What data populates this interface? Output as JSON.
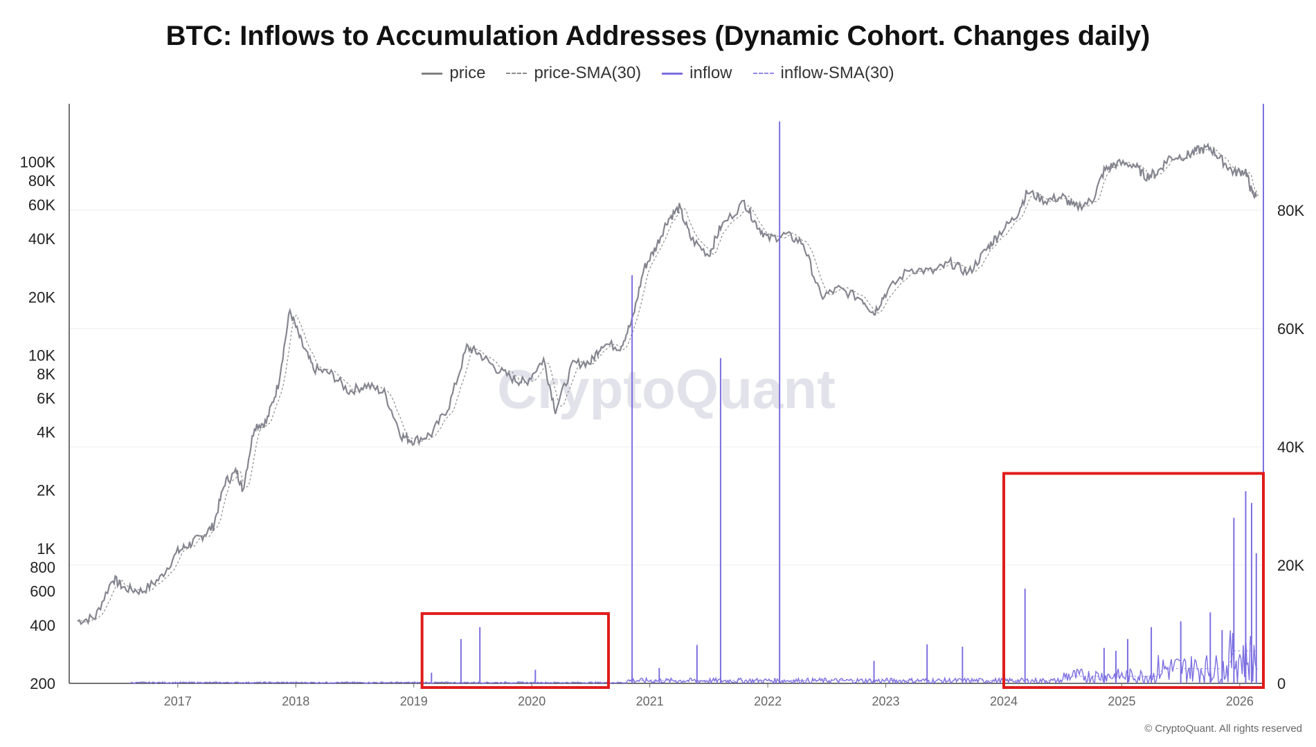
{
  "chart_data": {
    "type": "line",
    "title": "BTC: Inflows to Accumulation Addresses (Dynamic Cohort. Changes daily)",
    "legend": [
      {
        "name": "price",
        "style": "solid",
        "color": "#808080"
      },
      {
        "name": "price-SMA(30)",
        "style": "dashed",
        "color": "#8a8a8a"
      },
      {
        "name": "inflow",
        "style": "solid",
        "color": "#7b6fe0"
      },
      {
        "name": "inflow-SMA(30)",
        "style": "dashed",
        "color": "#8f86e6"
      }
    ],
    "legend_position": "top-center",
    "x_ticks": [
      "2017",
      "2018",
      "2019",
      "2020",
      "2021",
      "2022",
      "2023",
      "2024",
      "2025",
      "2026"
    ],
    "x_range": [
      2016.08,
      2026.2
    ],
    "left_axis": {
      "scale": "log",
      "range": [
        200,
        200000
      ],
      "ticks": [
        {
          "v": 200,
          "label": "200"
        },
        {
          "v": 400,
          "label": "400"
        },
        {
          "v": 600,
          "label": "600"
        },
        {
          "v": 800,
          "label": "800"
        },
        {
          "v": 1000,
          "label": "1K"
        },
        {
          "v": 2000,
          "label": "2K"
        },
        {
          "v": 4000,
          "label": "4K"
        },
        {
          "v": 6000,
          "label": "6K"
        },
        {
          "v": 8000,
          "label": "8K"
        },
        {
          "v": 10000,
          "label": "10K"
        },
        {
          "v": 20000,
          "label": "20K"
        },
        {
          "v": 40000,
          "label": "40K"
        },
        {
          "v": 60000,
          "label": "60K"
        },
        {
          "v": 80000,
          "label": "80K"
        },
        {
          "v": 100000,
          "label": "100K"
        }
      ]
    },
    "right_axis": {
      "scale": "linear",
      "range": [
        0,
        98000
      ],
      "ticks": [
        {
          "v": 0,
          "label": "0"
        },
        {
          "v": 20000,
          "label": "20K"
        },
        {
          "v": 40000,
          "label": "40K"
        },
        {
          "v": 60000,
          "label": "60K"
        },
        {
          "v": 80000,
          "label": "80K"
        }
      ]
    },
    "price_series": [
      [
        2016.15,
        420
      ],
      [
        2016.3,
        440
      ],
      [
        2016.45,
        700
      ],
      [
        2016.55,
        620
      ],
      [
        2016.7,
        600
      ],
      [
        2016.85,
        700
      ],
      [
        2017.0,
        960
      ],
      [
        2017.1,
        1050
      ],
      [
        2017.2,
        1150
      ],
      [
        2017.3,
        1300
      ],
      [
        2017.4,
        2200
      ],
      [
        2017.5,
        2500
      ],
      [
        2017.55,
        2000
      ],
      [
        2017.65,
        4300
      ],
      [
        2017.75,
        4500
      ],
      [
        2017.85,
        7000
      ],
      [
        2017.95,
        17000
      ],
      [
        2018.05,
        11500
      ],
      [
        2018.15,
        8500
      ],
      [
        2018.3,
        8000
      ],
      [
        2018.45,
        6500
      ],
      [
        2018.6,
        7000
      ],
      [
        2018.75,
        6400
      ],
      [
        2018.9,
        3800
      ],
      [
        2019.0,
        3600
      ],
      [
        2019.15,
        3900
      ],
      [
        2019.3,
        5500
      ],
      [
        2019.45,
        11000
      ],
      [
        2019.55,
        10200
      ],
      [
        2019.7,
        8500
      ],
      [
        2019.85,
        7500
      ],
      [
        2019.95,
        7200
      ],
      [
        2020.1,
        9500
      ],
      [
        2020.2,
        5200
      ],
      [
        2020.35,
        9000
      ],
      [
        2020.5,
        9200
      ],
      [
        2020.6,
        11500
      ],
      [
        2020.75,
        11000
      ],
      [
        2020.85,
        15000
      ],
      [
        2020.95,
        28000
      ],
      [
        2021.05,
        36000
      ],
      [
        2021.15,
        50000
      ],
      [
        2021.25,
        58000
      ],
      [
        2021.35,
        40000
      ],
      [
        2021.5,
        33000
      ],
      [
        2021.6,
        46000
      ],
      [
        2021.8,
        62000
      ],
      [
        2021.9,
        48000
      ],
      [
        2022.0,
        40000
      ],
      [
        2022.15,
        42000
      ],
      [
        2022.3,
        38000
      ],
      [
        2022.45,
        20000
      ],
      [
        2022.6,
        22000
      ],
      [
        2022.8,
        19500
      ],
      [
        2022.9,
        16500
      ],
      [
        2023.0,
        21000
      ],
      [
        2023.2,
        28000
      ],
      [
        2023.4,
        27000
      ],
      [
        2023.55,
        30000
      ],
      [
        2023.7,
        26500
      ],
      [
        2023.85,
        35000
      ],
      [
        2023.95,
        42000
      ],
      [
        2024.1,
        52000
      ],
      [
        2024.2,
        70000
      ],
      [
        2024.35,
        63000
      ],
      [
        2024.5,
        66000
      ],
      [
        2024.6,
        58000
      ],
      [
        2024.75,
        63000
      ],
      [
        2024.85,
        90000
      ],
      [
        2024.95,
        98000
      ],
      [
        2025.1,
        97000
      ],
      [
        2025.2,
        84000
      ],
      [
        2025.3,
        88000
      ],
      [
        2025.4,
        105000
      ],
      [
        2025.55,
        108000
      ],
      [
        2025.65,
        115000
      ],
      [
        2025.75,
        118000
      ],
      [
        2025.85,
        102000
      ],
      [
        2025.95,
        88000
      ],
      [
        2026.05,
        90000
      ],
      [
        2026.1,
        70000
      ],
      [
        2026.14,
        66000
      ]
    ],
    "inflow_spikes": [
      [
        2019.15,
        1800
      ],
      [
        2019.4,
        7500
      ],
      [
        2019.56,
        9500
      ],
      [
        2020.03,
        2300
      ],
      [
        2020.85,
        69000
      ],
      [
        2021.08,
        2600
      ],
      [
        2021.4,
        6500
      ],
      [
        2021.6,
        55000
      ],
      [
        2022.1,
        95000
      ],
      [
        2022.9,
        3800
      ],
      [
        2023.35,
        6600
      ],
      [
        2023.65,
        6200
      ],
      [
        2024.18,
        16000
      ],
      [
        2024.85,
        6000
      ],
      [
        2024.95,
        5500
      ],
      [
        2025.05,
        7500
      ],
      [
        2025.25,
        9500
      ],
      [
        2025.5,
        10500
      ],
      [
        2025.75,
        12000
      ],
      [
        2025.85,
        9000
      ],
      [
        2025.95,
        28000
      ],
      [
        2026.05,
        32500
      ],
      [
        2026.1,
        30500
      ],
      [
        2026.14,
        22000
      ]
    ],
    "annotations": [
      "highlight box 2019.1–2020.65 around inflow spikes",
      "highlight box 2024.0–2026.2 around rising inflows"
    ],
    "watermark": "CryptoQuant",
    "credit": "© CryptoQuant. All rights reserved",
    "grid": "horizontal-faint"
  }
}
